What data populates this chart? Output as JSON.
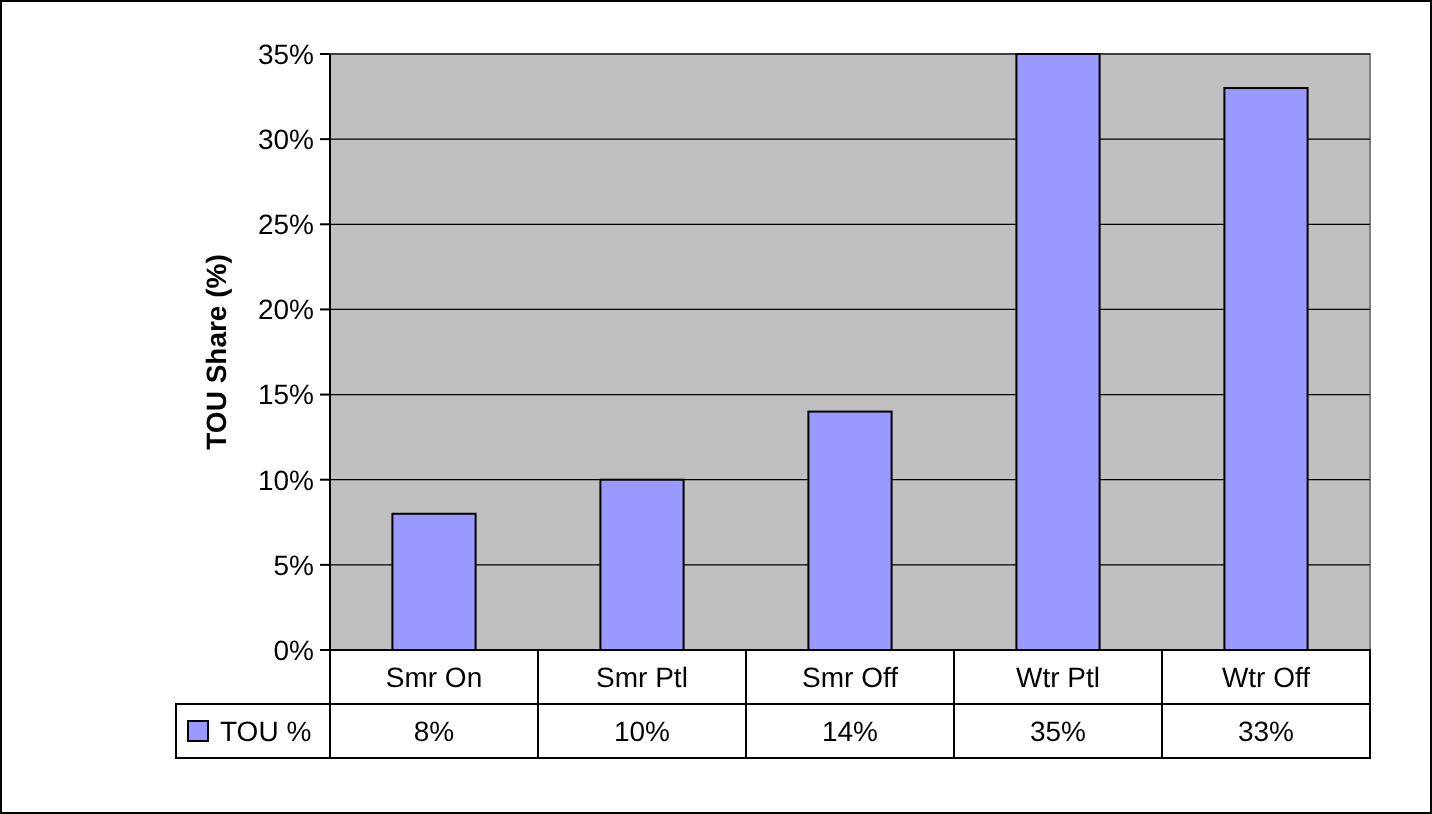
{
  "chart_data": {
    "type": "bar",
    "ylabel": "TOU Share (%)",
    "categories": [
      "Smr On",
      "Smr Ptl",
      "Smr Off",
      "Wtr Ptl",
      "Wtr Off"
    ],
    "series": [
      {
        "name": "TOU %",
        "color": "#9999ff",
        "values": [
          8,
          10,
          14,
          35,
          33
        ],
        "value_labels": [
          "8%",
          "10%",
          "14%",
          "35%",
          "33%"
        ]
      }
    ],
    "ylim": [
      0,
      35
    ],
    "yticks": [
      {
        "value": 0,
        "label": "0%"
      },
      {
        "value": 5,
        "label": "5%"
      },
      {
        "value": 10,
        "label": "10%"
      },
      {
        "value": 15,
        "label": "15%"
      },
      {
        "value": 20,
        "label": "20%"
      },
      {
        "value": 25,
        "label": "25%"
      },
      {
        "value": 30,
        "label": "30%"
      },
      {
        "value": 35,
        "label": "35%"
      }
    ],
    "grid": "y",
    "legend": "bottom left"
  }
}
